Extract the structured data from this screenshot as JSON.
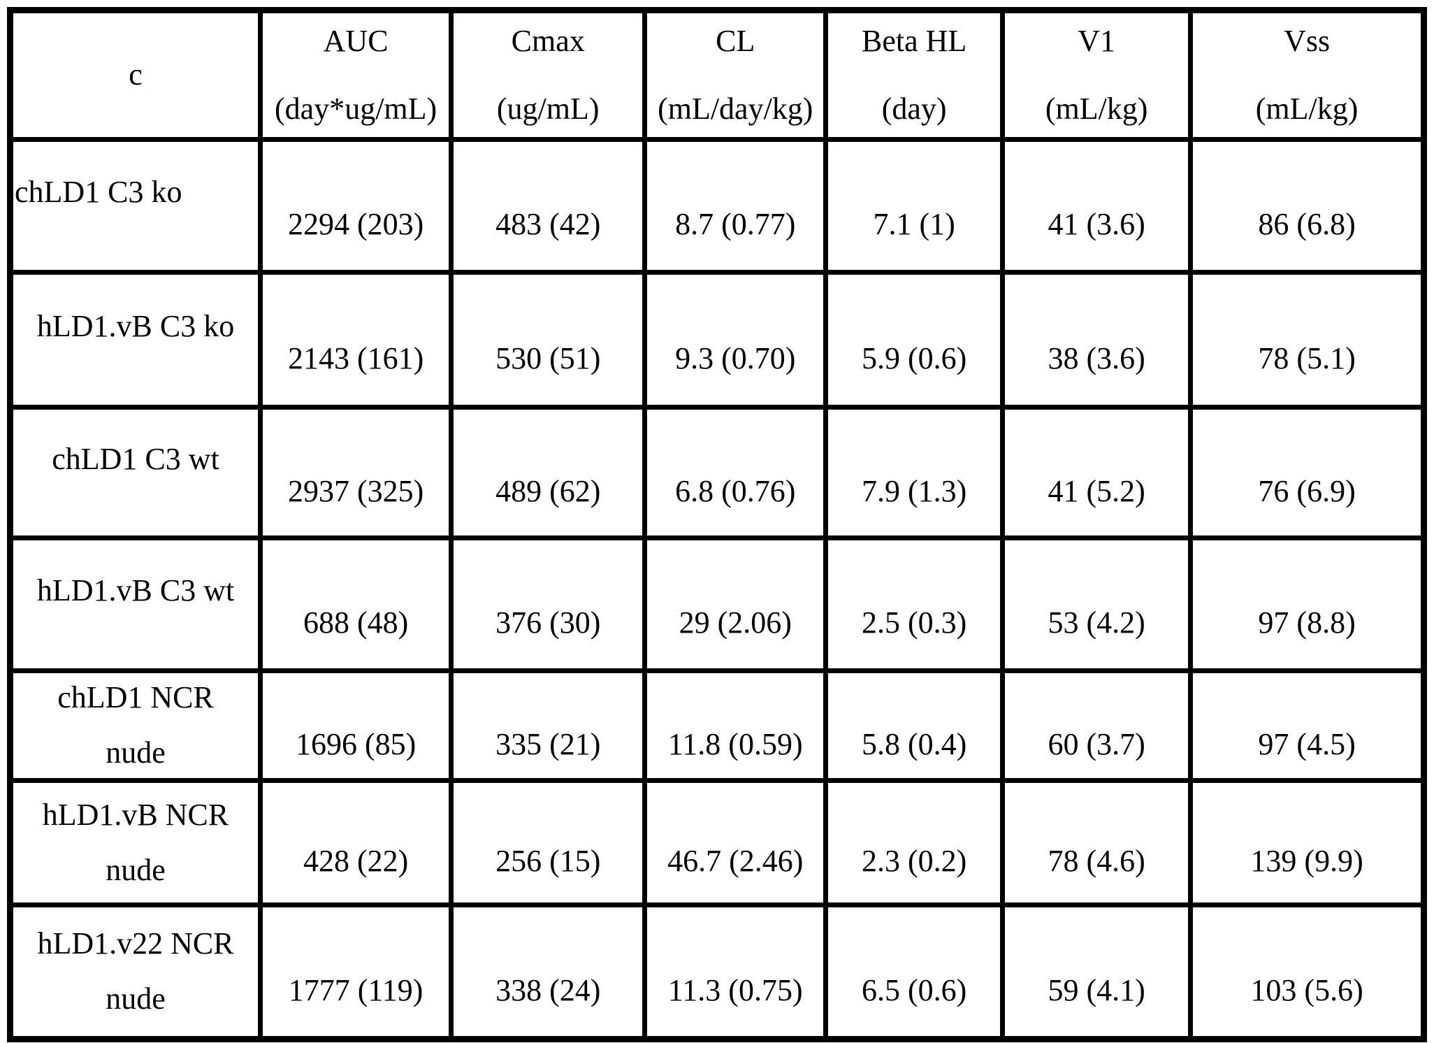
{
  "table": {
    "columns": [
      {
        "name": "c",
        "unit": ""
      },
      {
        "name": "AUC",
        "unit": "(day*ug/mL)"
      },
      {
        "name": "Cmax",
        "unit": "(ug/mL)"
      },
      {
        "name": "CL",
        "unit": "(mL/day/kg)"
      },
      {
        "name": "Beta HL",
        "unit": "(day)"
      },
      {
        "name": "V1",
        "unit": "(mL/kg)"
      },
      {
        "name": "Vss",
        "unit": "(mL/kg)"
      }
    ],
    "rows": [
      {
        "label": "chLD1 C3 ko",
        "values": [
          "2294 (203)",
          "483 (42)",
          "8.7 (0.77)",
          "7.1 (1)",
          "41 (3.6)",
          "86 (6.8)"
        ]
      },
      {
        "label": "hLD1.vB C3 ko",
        "values": [
          "2143 (161)",
          "530 (51)",
          "9.3 (0.70)",
          "5.9 (0.6)",
          "38 (3.6)",
          "78 (5.1)"
        ]
      },
      {
        "label": "chLD1 C3 wt",
        "values": [
          "2937 (325)",
          "489 (62)",
          "6.8 (0.76)",
          "7.9 (1.3)",
          "41 (5.2)",
          "76 (6.9)"
        ]
      },
      {
        "label": "hLD1.vB C3 wt",
        "values": [
          "688 (48)",
          "376 (30)",
          "29 (2.06)",
          "2.5 (0.3)",
          "53 (4.2)",
          "97 (8.8)"
        ]
      },
      {
        "label": "chLD1 NCR",
        "label2": "nude",
        "values": [
          "1696 (85)",
          "335 (21)",
          "11.8 (0.59)",
          "5.8 (0.4)",
          "60 (3.7)",
          "97 (4.5)"
        ]
      },
      {
        "label": "hLD1.vB NCR",
        "label2": "nude",
        "values": [
          "428 (22)",
          "256 (15)",
          "46.7 (2.46)",
          "2.3 (0.2)",
          "78 (4.6)",
          "139 (9.9)"
        ]
      },
      {
        "label": "hLD1.v22 NCR",
        "label2": "nude",
        "values": [
          "1777 (119)",
          "338 (24)",
          "11.3 (0.75)",
          "6.5 (0.6)",
          "59 (4.1)",
          "103 (5.6)"
        ]
      }
    ]
  }
}
